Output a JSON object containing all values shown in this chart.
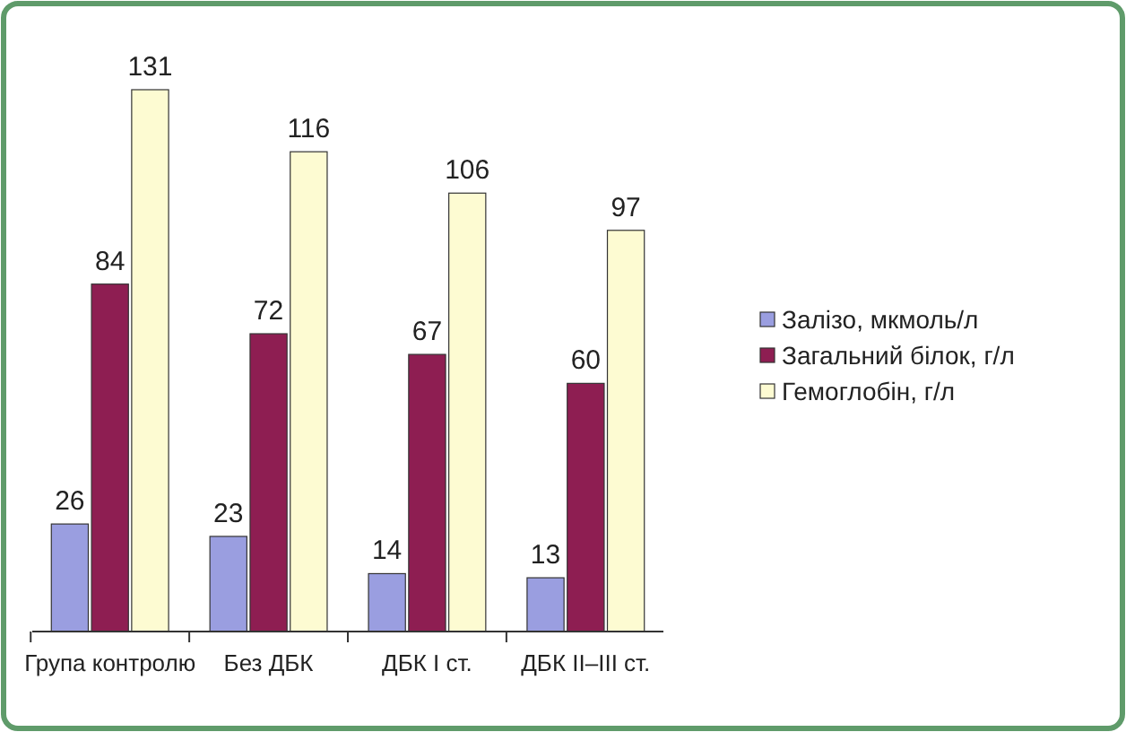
{
  "chart_data": {
    "type": "bar",
    "categories": [
      "Група контролю",
      "Без ДБК",
      "ДБК I ст.",
      "ДБК II–III ст."
    ],
    "series": [
      {
        "name": "Залізо, мкмоль/л",
        "color": "#9a9ee0",
        "values": [
          26,
          23,
          14,
          13
        ]
      },
      {
        "name": "Загальний білок, г/л",
        "color": "#8e1e52",
        "values": [
          84,
          72,
          67,
          60
        ]
      },
      {
        "name": "Гемоглобін, г/л",
        "color": "#fdfbd2",
        "values": [
          131,
          116,
          106,
          97
        ]
      }
    ],
    "data_labels": true,
    "legend": "right"
  }
}
